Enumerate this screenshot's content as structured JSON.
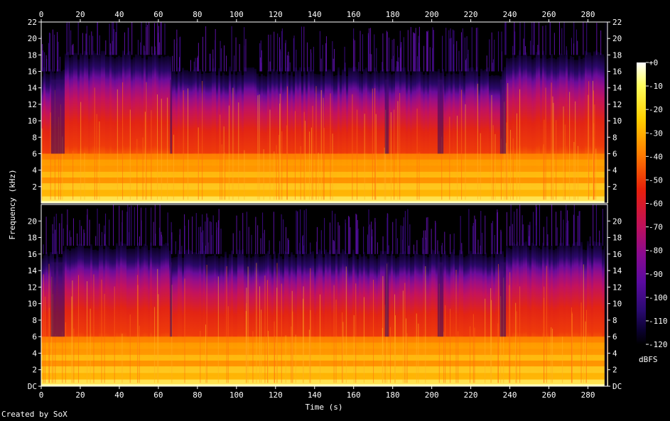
{
  "chart_data": {
    "type": "heatmap",
    "channels": 2,
    "x": {
      "label": "Time (s)",
      "range": [
        0,
        290
      ],
      "ticks": [
        0,
        20,
        40,
        60,
        80,
        100,
        120,
        140,
        160,
        180,
        200,
        220,
        240,
        260,
        280
      ]
    },
    "y": {
      "label": "Frequency (kHz)",
      "range": [
        0,
        22
      ],
      "top_channel_ticks": [
        "2",
        "4",
        "6",
        "8",
        "10",
        "12",
        "14",
        "16",
        "18",
        "20",
        "22"
      ],
      "top_channel_tick_values": [
        2,
        4,
        6,
        8,
        10,
        12,
        14,
        16,
        18,
        20,
        22
      ],
      "bottom_channel_ticks": [
        "DC",
        "2",
        "4",
        "6",
        "8",
        "10",
        "12",
        "14",
        "16",
        "18",
        "20"
      ],
      "bottom_channel_tick_values": [
        0,
        2,
        4,
        6,
        8,
        10,
        12,
        14,
        16,
        18,
        20
      ]
    },
    "colorbar": {
      "label": "dBFS",
      "range": [
        -120,
        0
      ],
      "ticks": [
        "+0",
        "-10",
        "-20",
        "-30",
        "-40",
        "-50",
        "-60",
        "-70",
        "-80",
        "-90",
        "-100",
        "-110",
        "-120"
      ],
      "tick_values": [
        0,
        -10,
        -20,
        -30,
        -40,
        -50,
        -60,
        -70,
        -80,
        -90,
        -100,
        -110,
        -120
      ],
      "colormap": [
        "#000000",
        "#0b0130",
        "#2a0a70",
        "#5a0aa0",
        "#8a0a90",
        "#c0105a",
        "#e8200a",
        "#ff6000",
        "#ffa000",
        "#ffd000",
        "#ffff60",
        "#ffffff"
      ]
    },
    "cutoff_khz": {
      "top_channel": [
        [
          0,
          16
        ],
        [
          11,
          18
        ],
        [
          66,
          16
        ],
        [
          233,
          16
        ],
        [
          237,
          18
        ],
        [
          290,
          18
        ]
      ],
      "bottom_channel": [
        [
          0,
          16
        ],
        [
          11,
          17
        ],
        [
          66,
          16
        ],
        [
          233,
          16
        ],
        [
          237,
          17
        ],
        [
          290,
          17
        ]
      ]
    },
    "drop_regions_s": [
      [
        5,
        12
      ],
      [
        66,
        67
      ],
      [
        176,
        178
      ],
      [
        203,
        206
      ],
      [
        235,
        238
      ]
    ]
  },
  "footer": "Created by SoX"
}
